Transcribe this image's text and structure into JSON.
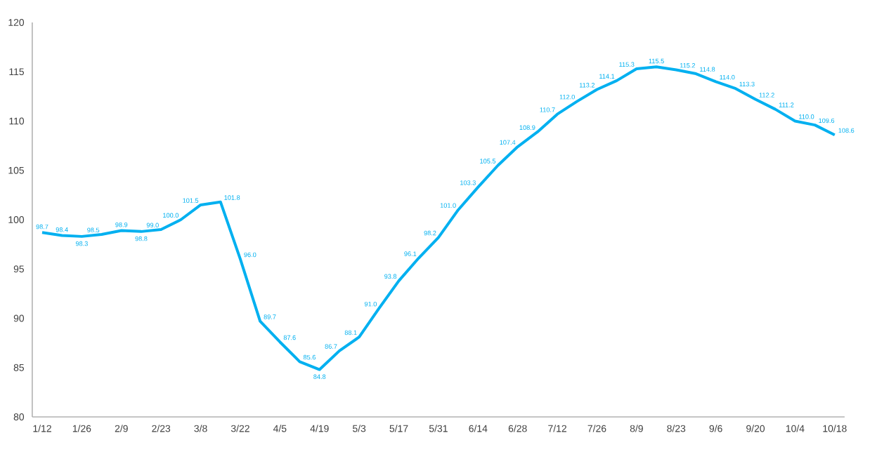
{
  "chart_data": {
    "type": "line",
    "categories": [
      "1/12",
      null,
      "1/26",
      null,
      "2/9",
      null,
      "2/23",
      null,
      "3/8",
      null,
      "3/22",
      null,
      "4/5",
      null,
      "4/19",
      null,
      "5/3",
      null,
      "5/17",
      null,
      "5/31",
      null,
      "6/14",
      null,
      "6/28",
      null,
      "7/12",
      null,
      "7/26",
      null,
      "8/9",
      null,
      "8/23",
      null,
      "9/6",
      null,
      "9/20",
      null,
      "10/4",
      null,
      "10/18"
    ],
    "values": [
      98.7,
      98.4,
      98.3,
      98.5,
      98.9,
      98.8,
      99.0,
      100.0,
      101.5,
      101.8,
      96.0,
      89.7,
      87.6,
      85.6,
      84.8,
      86.7,
      88.1,
      91.0,
      93.8,
      96.1,
      98.2,
      101.0,
      103.3,
      105.5,
      107.4,
      108.9,
      110.7,
      112.0,
      113.2,
      114.1,
      115.3,
      115.5,
      115.2,
      114.8,
      114.0,
      113.3,
      112.2,
      111.2,
      110.0,
      109.6,
      108.6
    ],
    "value_labels": [
      "98.7",
      "98.4",
      "98.3",
      "98.5",
      "98.9",
      "98.8",
      "99.0",
      "100.0",
      "101.5",
      "101.8",
      "96.0",
      "89.7",
      "87.6",
      "85.6",
      "84.8",
      "86.7",
      "88.1",
      "91.0",
      "93.8",
      "96.1",
      "98.2",
      "101.0",
      "103.3",
      "105.5",
      "107.4",
      "108.9",
      "110.7",
      "112.0",
      "113.2",
      "114.1",
      "115.3",
      "115.5",
      "115.2",
      "114.8",
      "114.0",
      "113.3",
      "112.2",
      "111.2",
      "110.0",
      "109.6",
      "108.6"
    ],
    "color": "#00b0f0",
    "ylim": [
      80,
      120
    ],
    "yticks": [
      80,
      85,
      90,
      95,
      100,
      105,
      110,
      115,
      120
    ],
    "grid": false,
    "marker": "none",
    "line_style": "solid"
  }
}
